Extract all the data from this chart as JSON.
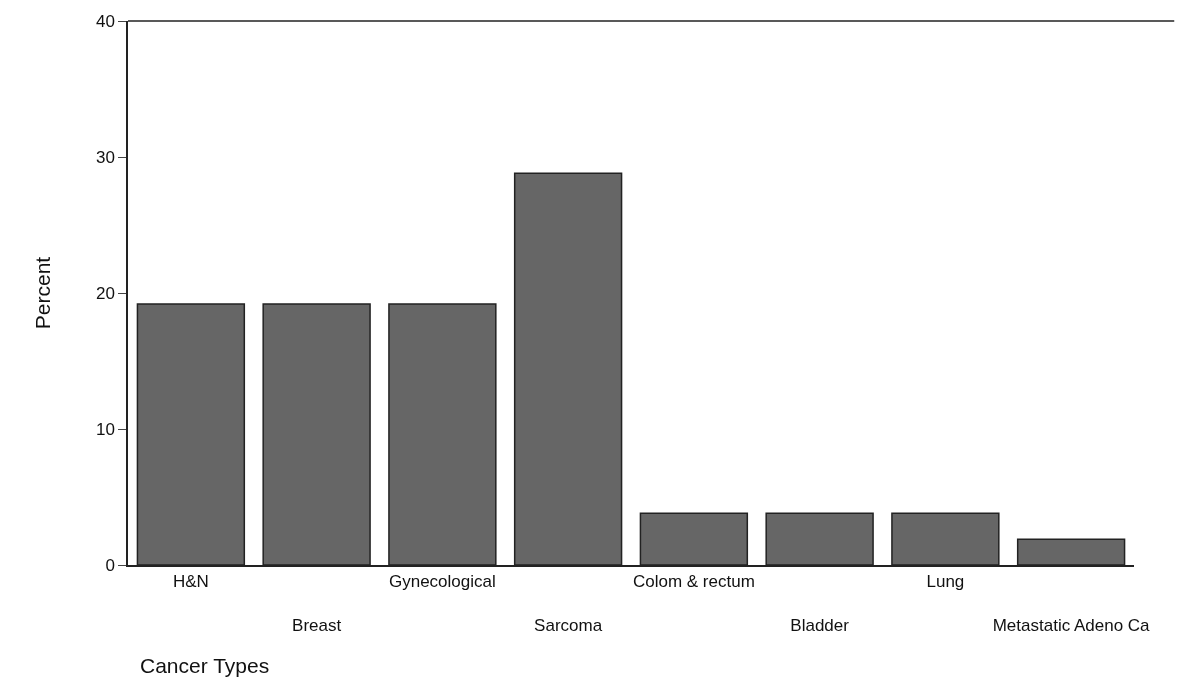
{
  "chart_data": {
    "type": "bar",
    "xlabel": "Cancer Types",
    "ylabel": "Percent",
    "categories": [
      "H&N",
      "Breast",
      "Gynecological",
      "Sarcoma",
      "Colom & rectum",
      "Bladder",
      "Lung",
      "Metastatic Adeno Ca"
    ],
    "values": [
      19.2,
      19.2,
      19.2,
      28.8,
      3.8,
      3.8,
      3.8,
      1.9
    ],
    "color": "#666666",
    "ylim": [
      0,
      40
    ],
    "yticks": [
      0,
      10,
      20,
      30,
      40
    ],
    "grid": false,
    "legend": false
  }
}
